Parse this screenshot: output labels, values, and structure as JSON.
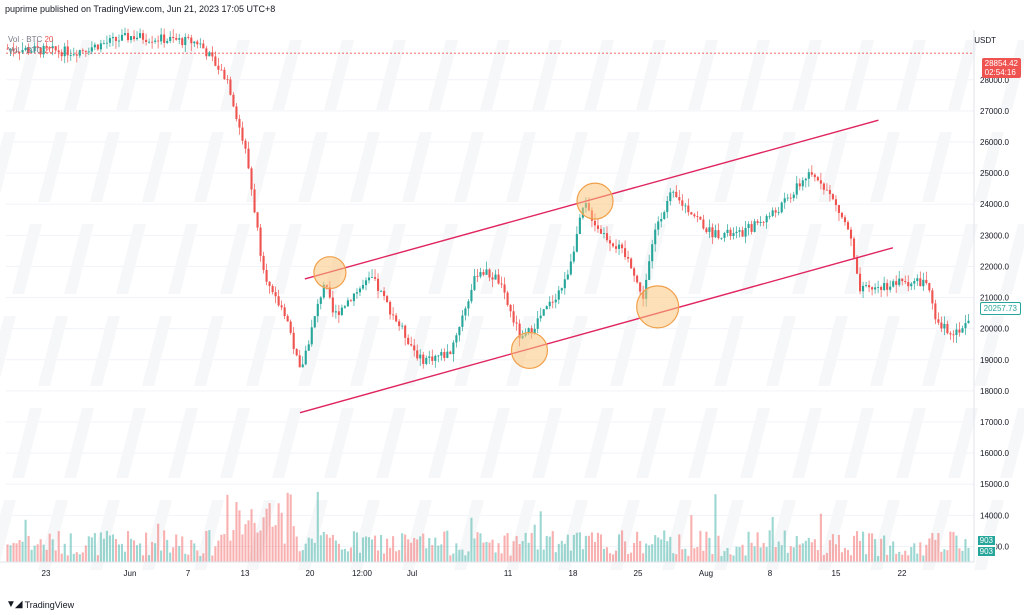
{
  "header": {
    "publisher": "puprime published on TradingView.com, Jun 21, 2023 17:05 UTC+8"
  },
  "indicators": [
    {
      "label": "Vol · BTC",
      "value": "20"
    },
    {
      "label": "Vol · BTC",
      "value": "20"
    }
  ],
  "price_axis": {
    "unit": "USDT",
    "ticks": [
      28000,
      27000,
      26000,
      25000,
      24000,
      23000,
      22000,
      21000,
      20000,
      19000,
      18000,
      17000,
      16000,
      15000,
      14000,
      13000
    ]
  },
  "price_tags": {
    "top_price": "28854.42",
    "top_countdown": "02:54:16",
    "last_price": "20257.73",
    "volume_a": "903",
    "volume_b": "903",
    "top_color": "#ef5350",
    "last_color": "#26a69a"
  },
  "footer": {
    "brand": "TradingView",
    "brand_icon": "tradingview-logo-icon"
  },
  "colors": {
    "up": "#26a69a",
    "down": "#ef5350",
    "channel": "#e0245e",
    "highlight_fill": "#fbc67c",
    "highlight_stroke": "#f0a04b"
  },
  "chart_data": {
    "type": "candlestick",
    "symbol": "BTC / USDT",
    "x_axis_labels": [
      "23",
      "Jun",
      "7",
      "13",
      "20",
      "12:00",
      "Jul",
      "11",
      "18",
      "25",
      "Aug",
      "8",
      "15",
      "22"
    ],
    "y_axis": {
      "min": 12500,
      "max": 29600,
      "ticks": [
        28000,
        27000,
        26000,
        25000,
        24000,
        23000,
        22000,
        21000,
        20000,
        19000,
        18000,
        17000,
        16000,
        15000,
        14000,
        13000
      ]
    },
    "horizontal_line": {
      "price": 28854.42
    },
    "price_path": [
      {
        "t": 0,
        "p": 29000
      },
      {
        "t": 0.07,
        "p": 28900
      },
      {
        "t": 0.13,
        "p": 29400
      },
      {
        "t": 0.2,
        "p": 29200
      },
      {
        "t": 0.23,
        "p": 28000
      },
      {
        "t": 0.25,
        "p": 25500
      },
      {
        "t": 0.265,
        "p": 22300
      },
      {
        "t": 0.275,
        "p": 21100
      },
      {
        "t": 0.29,
        "p": 20500
      },
      {
        "t": 0.305,
        "p": 18600
      },
      {
        "t": 0.32,
        "p": 20300
      },
      {
        "t": 0.33,
        "p": 21500
      },
      {
        "t": 0.34,
        "p": 20400
      },
      {
        "t": 0.36,
        "p": 21100
      },
      {
        "t": 0.38,
        "p": 21600
      },
      {
        "t": 0.41,
        "p": 20000
      },
      {
        "t": 0.43,
        "p": 19000
      },
      {
        "t": 0.46,
        "p": 19200
      },
      {
        "t": 0.49,
        "p": 21900
      },
      {
        "t": 0.51,
        "p": 21600
      },
      {
        "t": 0.535,
        "p": 19600
      },
      {
        "t": 0.56,
        "p": 20600
      },
      {
        "t": 0.58,
        "p": 21500
      },
      {
        "t": 0.6,
        "p": 24000
      },
      {
        "t": 0.615,
        "p": 23200
      },
      {
        "t": 0.635,
        "p": 22600
      },
      {
        "t": 0.65,
        "p": 22000
      },
      {
        "t": 0.66,
        "p": 20900
      },
      {
        "t": 0.675,
        "p": 23400
      },
      {
        "t": 0.69,
        "p": 24300
      },
      {
        "t": 0.71,
        "p": 23800
      },
      {
        "t": 0.73,
        "p": 23100
      },
      {
        "t": 0.76,
        "p": 23000
      },
      {
        "t": 0.78,
        "p": 23400
      },
      {
        "t": 0.8,
        "p": 23800
      },
      {
        "t": 0.815,
        "p": 24300
      },
      {
        "t": 0.83,
        "p": 24900
      },
      {
        "t": 0.845,
        "p": 24800
      },
      {
        "t": 0.86,
        "p": 24000
      },
      {
        "t": 0.875,
        "p": 23100
      },
      {
        "t": 0.885,
        "p": 21200
      },
      {
        "t": 0.9,
        "p": 21300
      },
      {
        "t": 0.93,
        "p": 21500
      },
      {
        "t": 0.955,
        "p": 21500
      },
      {
        "t": 0.965,
        "p": 20100
      },
      {
        "t": 0.985,
        "p": 19900
      },
      {
        "t": 1.0,
        "p": 20250
      }
    ],
    "channel_lines": [
      {
        "name": "upper",
        "from": {
          "t": 0.31,
          "p": 21600
        },
        "to": {
          "t": 0.905,
          "p": 26700
        }
      },
      {
        "name": "lower",
        "from": {
          "t": 0.305,
          "p": 17300
        },
        "to": {
          "t": 0.92,
          "p": 22600
        }
      }
    ],
    "touch_points": [
      {
        "t": 0.336,
        "p": 21800
      },
      {
        "t": 0.543,
        "p": 19300
      },
      {
        "t": 0.611,
        "p": 24100
      },
      {
        "t": 0.676,
        "p": 20700
      }
    ]
  }
}
